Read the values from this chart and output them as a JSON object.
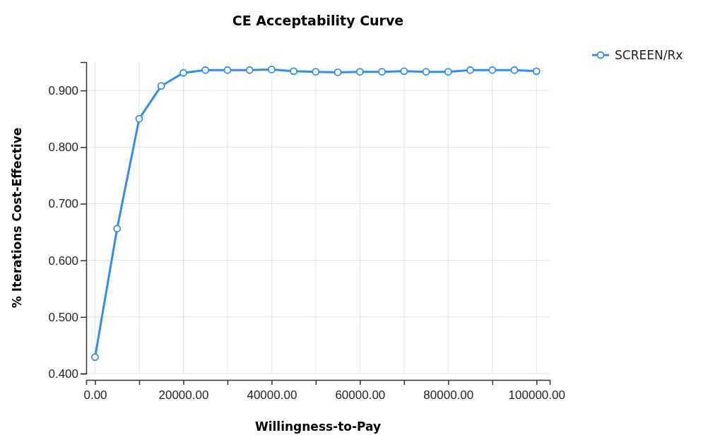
{
  "chart_data": {
    "type": "line",
    "title": "CE Acceptability Curve",
    "xlabel": "Willingness-to-Pay",
    "ylabel": "% Iterations Cost-Effective",
    "x": [
      0,
      5000,
      10000,
      15000,
      20000,
      25000,
      30000,
      35000,
      40000,
      45000,
      50000,
      55000,
      60000,
      65000,
      70000,
      75000,
      80000,
      85000,
      90000,
      95000,
      100000
    ],
    "series": [
      {
        "name": "SCREEN/Rx",
        "color": "#2f8ff0",
        "values": [
          0.429,
          0.656,
          0.85,
          0.908,
          0.931,
          0.936,
          0.936,
          0.936,
          0.937,
          0.934,
          0.933,
          0.932,
          0.933,
          0.933,
          0.934,
          0.933,
          0.933,
          0.936,
          0.936,
          0.936,
          0.934
        ]
      }
    ],
    "xlim": [
      -2000,
      103000
    ],
    "xticks": [
      {
        "value": 0,
        "label": "0.00"
      },
      {
        "value": 10000,
        "label": null
      },
      {
        "value": 20000,
        "label": "20000.00"
      },
      {
        "value": 30000,
        "label": null
      },
      {
        "value": 40000,
        "label": "40000.00"
      },
      {
        "value": 50000,
        "label": null
      },
      {
        "value": 60000,
        "label": "60000.00"
      },
      {
        "value": 70000,
        "label": null
      },
      {
        "value": 80000,
        "label": "80000.00"
      },
      {
        "value": 90000,
        "label": null
      },
      {
        "value": 100000,
        "label": "100000.00"
      }
    ],
    "ylim": [
      0.4,
      0.95
    ],
    "yticks": [
      {
        "value": 0.4,
        "label": "0.400"
      },
      {
        "value": 0.5,
        "label": "0.500"
      },
      {
        "value": 0.6,
        "label": "0.600"
      },
      {
        "value": 0.7,
        "label": "0.700"
      },
      {
        "value": 0.8,
        "label": "0.800"
      },
      {
        "value": 0.9,
        "label": "0.900"
      }
    ],
    "grid": true,
    "legend": "top right",
    "marker": "circle",
    "line_style": "solid"
  }
}
